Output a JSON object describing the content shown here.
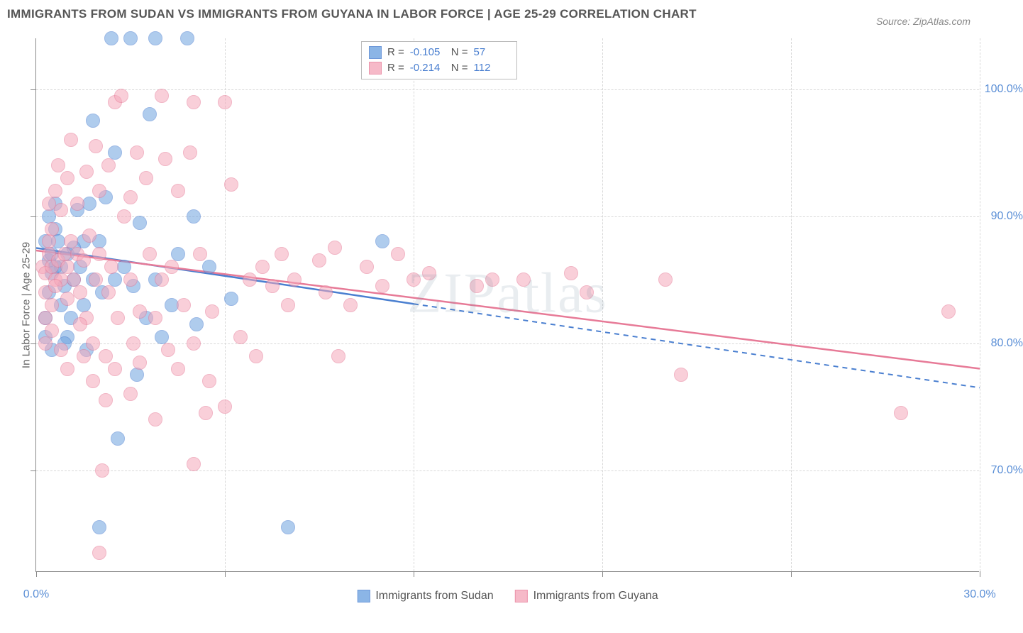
{
  "title": "IMMIGRANTS FROM SUDAN VS IMMIGRANTS FROM GUYANA IN LABOR FORCE | AGE 25-29 CORRELATION CHART",
  "source": "Source: ZipAtlas.com",
  "watermark": "ZIPatlas",
  "ylabel": "In Labor Force | Age 25-29",
  "chart": {
    "type": "scatter-correlation",
    "background_color": "#ffffff",
    "grid_color": "#d8d8d8",
    "axis_color": "#888888",
    "text_color": "#666666",
    "value_color": "#5b8fd6",
    "xlim": [
      0,
      30
    ],
    "ylim": [
      62,
      104
    ],
    "xticks": [
      0,
      6,
      12,
      18,
      24,
      30
    ],
    "xtick_labels": [
      "0.0%",
      "",
      "",
      "",
      "",
      "30.0%"
    ],
    "yticks": [
      70,
      80,
      90,
      100
    ],
    "ytick_labels": [
      "70.0%",
      "80.0%",
      "90.0%",
      "100.0%"
    ],
    "marker_radius": 10,
    "marker_opacity": 0.55,
    "series": [
      {
        "name": "Immigrants from Sudan",
        "color": "#6fa3e0",
        "stroke": "#4a7fd0",
        "R": "-0.105",
        "N": "57",
        "regression": {
          "x1": 0,
          "y1": 87.5,
          "x2": 30,
          "y2": 76.5,
          "solid_until_x": 12
        },
        "points": [
          [
            0.3,
            88
          ],
          [
            0.4,
            86.5
          ],
          [
            0.5,
            87
          ],
          [
            0.6,
            89
          ],
          [
            0.4,
            84
          ],
          [
            0.5,
            85.5
          ],
          [
            0.3,
            82
          ],
          [
            0.7,
            88
          ],
          [
            0.6,
            91
          ],
          [
            0.8,
            86
          ],
          [
            0.5,
            79.5
          ],
          [
            0.3,
            80.5
          ],
          [
            1.0,
            87
          ],
          [
            0.9,
            84.5
          ],
          [
            1.2,
            85
          ],
          [
            1.1,
            82
          ],
          [
            1.0,
            80.5
          ],
          [
            1.3,
            90.5
          ],
          [
            1.4,
            86
          ],
          [
            1.5,
            83
          ],
          [
            1.8,
            85
          ],
          [
            1.6,
            79.5
          ],
          [
            1.8,
            97.5
          ],
          [
            2.0,
            88
          ],
          [
            2.1,
            84
          ],
          [
            2.2,
            91.5
          ],
          [
            2.5,
            95
          ],
          [
            2.6,
            72.5
          ],
          [
            2.4,
            104
          ],
          [
            2.8,
            86
          ],
          [
            3.0,
            104
          ],
          [
            3.1,
            84.5
          ],
          [
            3.3,
            89.5
          ],
          [
            3.2,
            77.5
          ],
          [
            3.6,
            98
          ],
          [
            3.8,
            104
          ],
          [
            3.8,
            85
          ],
          [
            4.0,
            80.5
          ],
          [
            4.3,
            83
          ],
          [
            4.5,
            87
          ],
          [
            4.8,
            104
          ],
          [
            5.0,
            90
          ],
          [
            5.1,
            81.5
          ],
          [
            5.5,
            86
          ],
          [
            2.0,
            65.5
          ],
          [
            2.5,
            85
          ],
          [
            1.5,
            88
          ],
          [
            0.8,
            83
          ],
          [
            0.9,
            80
          ],
          [
            1.7,
            91
          ],
          [
            3.5,
            82
          ],
          [
            8.0,
            65.5
          ],
          [
            11.0,
            88
          ],
          [
            1.2,
            87.5
          ],
          [
            0.6,
            86
          ],
          [
            0.4,
            90
          ],
          [
            6.2,
            83.5
          ]
        ]
      },
      {
        "name": "Immigrants from Guyana",
        "color": "#f5a8bb",
        "stroke": "#e77a97",
        "R": "-0.214",
        "N": "112",
        "regression": {
          "x1": 0,
          "y1": 87.3,
          "x2": 30,
          "y2": 78.0,
          "solid_until_x": 30
        },
        "points": [
          [
            0.2,
            86
          ],
          [
            0.3,
            85.5
          ],
          [
            0.4,
            87
          ],
          [
            0.5,
            86
          ],
          [
            0.6,
            85
          ],
          [
            0.3,
            84
          ],
          [
            0.4,
            88
          ],
          [
            0.5,
            89
          ],
          [
            0.7,
            86.5
          ],
          [
            0.8,
            85
          ],
          [
            0.9,
            87
          ],
          [
            1.0,
            86
          ],
          [
            0.6,
            84.5
          ],
          [
            0.5,
            83
          ],
          [
            0.3,
            82
          ],
          [
            1.1,
            88
          ],
          [
            1.2,
            85
          ],
          [
            1.0,
            83.5
          ],
          [
            1.3,
            87
          ],
          [
            1.4,
            84
          ],
          [
            1.5,
            86.5
          ],
          [
            1.6,
            82
          ],
          [
            1.7,
            88.5
          ],
          [
            1.8,
            80
          ],
          [
            1.9,
            85
          ],
          [
            2.0,
            87
          ],
          [
            2.1,
            70
          ],
          [
            2.2,
            79
          ],
          [
            2.3,
            84
          ],
          [
            2.4,
            86
          ],
          [
            2.5,
            99
          ],
          [
            2.6,
            82
          ],
          [
            2.0,
            63.5
          ],
          [
            2.8,
            90
          ],
          [
            3.0,
            85
          ],
          [
            3.1,
            80
          ],
          [
            3.2,
            95
          ],
          [
            3.3,
            78.5
          ],
          [
            2.7,
            99.5
          ],
          [
            3.6,
            87
          ],
          [
            3.8,
            82
          ],
          [
            4.0,
            85
          ],
          [
            4.1,
            94.5
          ],
          [
            4.3,
            86
          ],
          [
            4.5,
            92
          ],
          [
            4.7,
            83
          ],
          [
            4.9,
            95
          ],
          [
            5.0,
            99
          ],
          [
            5.2,
            87
          ],
          [
            5.4,
            74.5
          ],
          [
            5.6,
            82.5
          ],
          [
            5.0,
            70.5
          ],
          [
            6.0,
            99
          ],
          [
            6.2,
            92.5
          ],
          [
            6.5,
            80.5
          ],
          [
            6.8,
            85
          ],
          [
            7.0,
            79
          ],
          [
            7.2,
            86
          ],
          [
            7.5,
            84.5
          ],
          [
            7.8,
            87
          ],
          [
            8.0,
            83
          ],
          [
            8.2,
            85
          ],
          [
            9.0,
            86.5
          ],
          [
            9.2,
            84
          ],
          [
            9.5,
            87.5
          ],
          [
            9.6,
            79
          ],
          [
            10.0,
            83
          ],
          [
            10.5,
            86
          ],
          [
            11.0,
            84.5
          ],
          [
            11.5,
            87
          ],
          [
            12.0,
            85
          ],
          [
            12.5,
            85.5
          ],
          [
            14.5,
            85
          ],
          [
            15.5,
            85
          ],
          [
            14.0,
            84.5
          ],
          [
            17.0,
            85.5
          ],
          [
            17.5,
            84
          ],
          [
            20.0,
            85
          ],
          [
            20.5,
            77.5
          ],
          [
            29.0,
            82.5
          ],
          [
            27.5,
            74.5
          ],
          [
            0.4,
            91
          ],
          [
            0.6,
            92
          ],
          [
            0.8,
            90.5
          ],
          [
            1.0,
            93
          ],
          [
            1.3,
            91
          ],
          [
            1.6,
            93.5
          ],
          [
            2.0,
            92
          ],
          [
            2.3,
            94
          ],
          [
            3.0,
            91.5
          ],
          [
            3.5,
            93
          ],
          [
            4.0,
            99.5
          ],
          [
            1.5,
            79
          ],
          [
            1.8,
            77
          ],
          [
            2.2,
            75.5
          ],
          [
            2.5,
            78
          ],
          [
            3.0,
            76
          ],
          [
            3.3,
            82.5
          ],
          [
            3.8,
            74
          ],
          [
            4.2,
            79.5
          ],
          [
            4.5,
            78
          ],
          [
            5.0,
            80
          ],
          [
            5.5,
            77
          ],
          [
            6.0,
            75
          ],
          [
            0.3,
            80
          ],
          [
            0.5,
            81
          ],
          [
            0.8,
            79.5
          ],
          [
            1.0,
            78
          ],
          [
            1.4,
            81.5
          ],
          [
            0.7,
            94
          ],
          [
            1.1,
            96
          ],
          [
            1.9,
            95.5
          ]
        ]
      }
    ]
  }
}
